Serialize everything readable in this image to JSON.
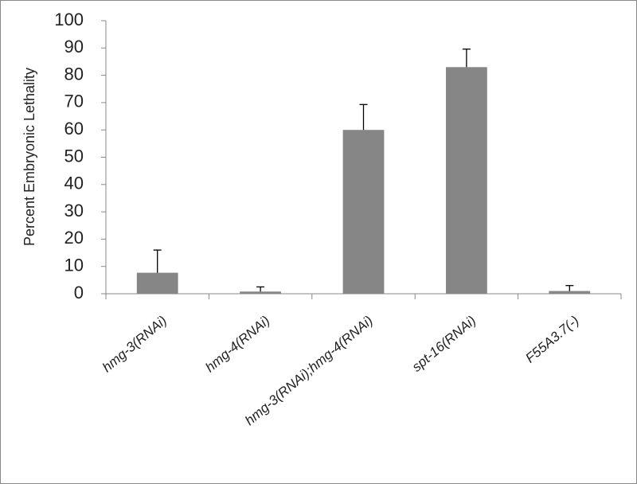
{
  "chart_data": {
    "type": "bar",
    "y_label": "Percent Embryonic Lethality",
    "categories": [
      "hmg-3(RNAi)",
      "hmg-4(RNAi)",
      "hmg-3(RNAi);hmg-4(RNAi)",
      "spt-16(RNAi)",
      "F55A3.7(-)"
    ],
    "values": [
      7.7,
      0.8,
      60,
      83,
      1
    ],
    "errors": [
      8.3,
      1.7,
      9.3,
      6.6,
      2
    ],
    "color": "#868686",
    "ylim": [
      0,
      100
    ],
    "yticks": [
      0,
      10,
      20,
      30,
      40,
      50,
      60,
      70,
      80,
      90,
      100
    ],
    "grid": false
  }
}
